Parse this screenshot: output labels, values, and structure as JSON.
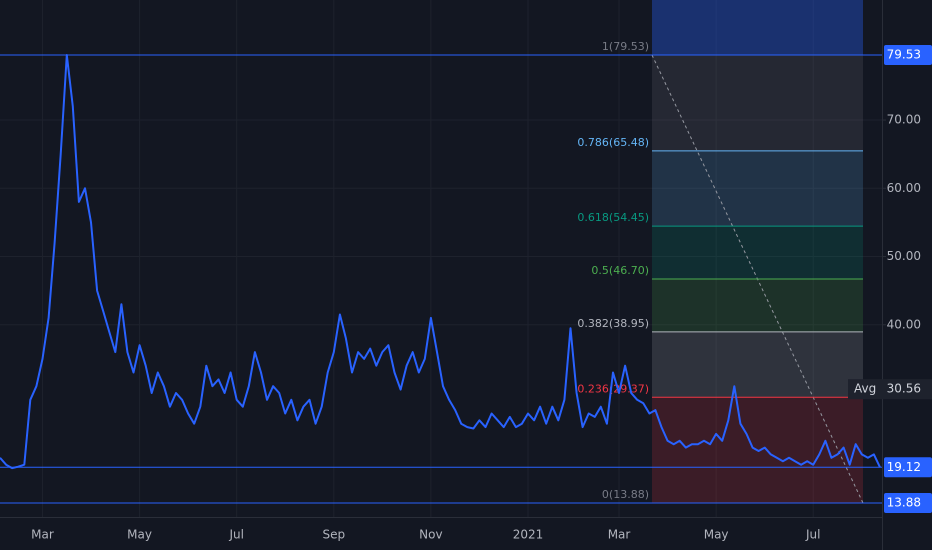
{
  "chart_data": {
    "type": "line",
    "color": "#2962ff",
    "grid": true,
    "ylim": [
      11.83,
      87.59
    ],
    "yticks": [
      {
        "value": 40,
        "label": "40.00"
      },
      {
        "value": 50,
        "label": "50.00"
      },
      {
        "value": 60,
        "label": "60.00"
      },
      {
        "value": 70,
        "label": "70.00"
      }
    ],
    "categories": [
      null,
      null,
      null,
      null,
      null,
      null,
      null,
      "Mar",
      null,
      null,
      null,
      null,
      null,
      null,
      null,
      null,
      null,
      null,
      null,
      null,
      null,
      null,
      null,
      "May",
      null,
      null,
      null,
      null,
      null,
      null,
      null,
      null,
      null,
      null,
      null,
      null,
      null,
      null,
      null,
      "Jul",
      null,
      null,
      null,
      null,
      null,
      null,
      null,
      null,
      null,
      null,
      null,
      null,
      null,
      null,
      null,
      "Sep",
      null,
      null,
      null,
      null,
      null,
      null,
      null,
      null,
      null,
      null,
      null,
      null,
      null,
      null,
      null,
      "Nov",
      null,
      null,
      null,
      null,
      null,
      null,
      null,
      null,
      null,
      null,
      null,
      null,
      null,
      null,
      null,
      "2021",
      null,
      null,
      null,
      null,
      null,
      null,
      null,
      null,
      null,
      null,
      null,
      null,
      null,
      null,
      "Mar",
      null,
      null,
      null,
      null,
      null,
      null,
      null,
      null,
      null,
      null,
      null,
      null,
      null,
      null,
      null,
      "May",
      null,
      null,
      null,
      null,
      null,
      null,
      null,
      null,
      null,
      null,
      null,
      null,
      null,
      null,
      null,
      "Jul",
      null,
      null,
      null,
      null,
      null,
      null,
      null,
      null,
      null,
      null,
      null
    ],
    "values": [
      20.5,
      19.5,
      19,
      19.2,
      19.5,
      29,
      31,
      35,
      41,
      52,
      65,
      79.53,
      72,
      58,
      60,
      55,
      45,
      42,
      39,
      36,
      43,
      36,
      33,
      37,
      34,
      30,
      33,
      31,
      28,
      30,
      29,
      27,
      25.5,
      28,
      34,
      31,
      32,
      30,
      33,
      29,
      28,
      31,
      36,
      33,
      29,
      31,
      30,
      27,
      29,
      26,
      28,
      29,
      25.5,
      28,
      33,
      36,
      41.5,
      38,
      33,
      36,
      35,
      36.5,
      34,
      36,
      37,
      33,
      30.5,
      34,
      36,
      33,
      35,
      41,
      36,
      31,
      29,
      27.5,
      25.5,
      25,
      24.8,
      26,
      25,
      27,
      26,
      25,
      26.5,
      25,
      25.5,
      27,
      26,
      28,
      25.5,
      28,
      26,
      29,
      39.5,
      30,
      25,
      27,
      26.5,
      28,
      25.5,
      33,
      30,
      34,
      30,
      29,
      28.5,
      27,
      27.5,
      25,
      23,
      22.5,
      23,
      22,
      22.5,
      22.5,
      23,
      22.5,
      24,
      23,
      26,
      31,
      25.5,
      24,
      22,
      21.5,
      22,
      21,
      20.5,
      20,
      20.5,
      20,
      19.5,
      20,
      19.5,
      21,
      23,
      20.5,
      21,
      22,
      19.5,
      22.5,
      21,
      20.5,
      21,
      19.12
    ],
    "fib_levels": [
      {
        "label": "1(79.53)",
        "value": 79.53,
        "color": "#787b86"
      },
      {
        "label": "0.786(65.48)",
        "value": 65.48,
        "color": "#64b5f6"
      },
      {
        "label": "0.618(54.45)",
        "value": 54.45,
        "color": "#089981"
      },
      {
        "label": "0.5(46.70)",
        "value": 46.7,
        "color": "#4caf50"
      },
      {
        "label": "0.382(38.95)",
        "value": 38.95,
        "color": "#b2b5be"
      },
      {
        "label": "0.236(29.37)",
        "value": 29.37,
        "color": "#f23645"
      },
      {
        "label": "0(13.88)",
        "value": 13.88,
        "color": "#787b86"
      }
    ],
    "price_lines": [
      79.53,
      19.12,
      13.88
    ],
    "avg": {
      "name": "Avg",
      "value": 30.56
    }
  }
}
